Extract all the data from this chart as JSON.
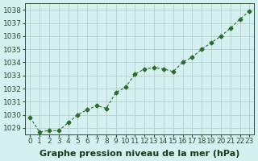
{
  "x": [
    0,
    1,
    2,
    3,
    4,
    5,
    6,
    7,
    8,
    9,
    10,
    11,
    12,
    13,
    14,
    15,
    16,
    17,
    18,
    19,
    20,
    21,
    22,
    23
  ],
  "y": [
    1029.8,
    1028.7,
    1028.8,
    1028.8,
    1029.4,
    1030.0,
    1030.4,
    1030.7,
    1030.5,
    1031.7,
    1032.1,
    1033.1,
    1033.5,
    1033.6,
    1033.5,
    1033.3,
    1034.0,
    1034.4,
    1035.0,
    1035.5,
    1036.0,
    1036.6,
    1037.3,
    1037.9
  ],
  "ylim": [
    1028.5,
    1038.5
  ],
  "yticks": [
    1029,
    1030,
    1031,
    1032,
    1033,
    1034,
    1035,
    1036,
    1037,
    1038
  ],
  "xticks": [
    0,
    1,
    2,
    3,
    4,
    5,
    6,
    7,
    8,
    9,
    10,
    11,
    12,
    13,
    14,
    15,
    16,
    17,
    18,
    19,
    20,
    21,
    22,
    23
  ],
  "line_color": "#2d6a2d",
  "marker": "D",
  "marker_size": 2.5,
  "bg_color": "#d4f0f0",
  "grid_color": "#b0c8c8",
  "xlabel": "Graphe pression niveau de la mer (hPa)",
  "xlabel_color": "#1a3a1a",
  "xlabel_fontsize": 8,
  "tick_fontsize": 6.5,
  "tick_color": "#2d4d2d",
  "spine_color": "#2d4d2d",
  "xlabel_fontweight": "bold"
}
